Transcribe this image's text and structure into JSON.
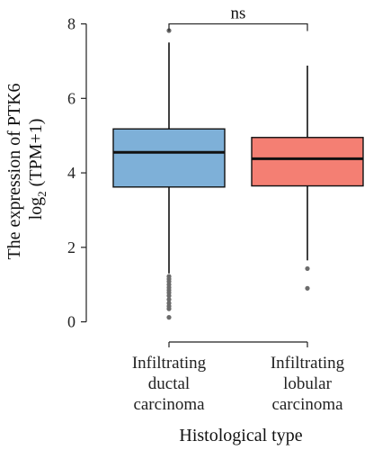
{
  "chart_data": {
    "type": "boxplot",
    "xlabel": "Histological type",
    "ylabel_line1": "The expression of PTK6",
    "ylabel_line2_prefix": "log",
    "ylabel_line2_sub": "2",
    "ylabel_line2_suffix": " (TPM+1)",
    "ylim": [
      -0.3,
      8.4
    ],
    "yticks": [
      0,
      2,
      4,
      6,
      8
    ],
    "grid": false,
    "categories": [
      {
        "lines": [
          "Infiltrating",
          "ductal",
          "carcinoma"
        ]
      },
      {
        "lines": [
          "Infiltrating",
          "lobular",
          "carcinoma"
        ]
      }
    ],
    "boxes": [
      {
        "category": "Infiltrating ductal carcinoma",
        "color": "#7eb0d8",
        "whisker_low": 1.3,
        "q1": 3.62,
        "median": 4.55,
        "q3": 5.18,
        "whisker_high": 7.5,
        "outliers": [
          7.82,
          1.22,
          1.15,
          1.08,
          1.0,
          0.92,
          0.85,
          0.78,
          0.7,
          0.6,
          0.5,
          0.42,
          0.35,
          0.12
        ]
      },
      {
        "category": "Infiltrating lobular carcinoma",
        "color": "#f47f73",
        "whisker_low": 1.65,
        "q1": 3.65,
        "median": 4.38,
        "q3": 4.95,
        "whisker_high": 6.88,
        "outliers": [
          1.43,
          0.9
        ]
      }
    ],
    "annotation": {
      "text": "ns",
      "y": 8.0
    }
  }
}
